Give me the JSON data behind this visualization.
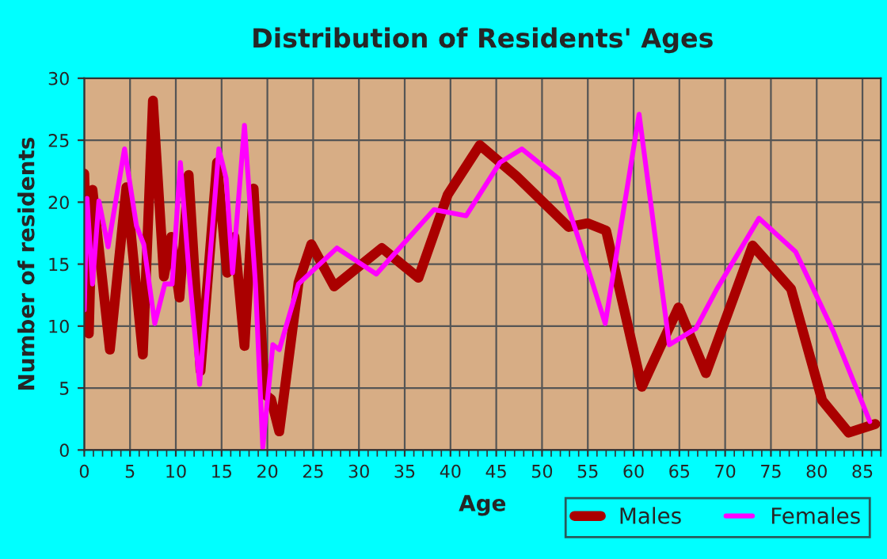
{
  "chart_data": {
    "type": "line",
    "title": "Distribution of Residents' Ages",
    "xlabel": "Age",
    "ylabel": "Number of residents",
    "xlim": [
      0,
      87
    ],
    "xticks": [
      0,
      5,
      10,
      15,
      20,
      25,
      30,
      35,
      40,
      45,
      50,
      55,
      60,
      65,
      70,
      75,
      80,
      85
    ],
    "ylim": [
      0,
      30
    ],
    "yticks": [
      0,
      5,
      10,
      15,
      20,
      25,
      30
    ],
    "grid": true,
    "legend": "bottom right",
    "line_style": "solid",
    "marker": "none",
    "series": [
      {
        "name": "Males",
        "color": "#aa0000",
        "x": [
          0,
          0.5,
          0.9,
          2.8,
          4.6,
          6.4,
          7.5,
          8.7,
          9.5,
          10.4,
          11.4,
          12.7,
          14.5,
          15.6,
          16.4,
          17.5,
          18.5,
          19.7,
          20.4,
          21.3,
          23.4,
          24.8,
          27.3,
          32.5,
          36.5,
          39.7,
          43.2,
          47.2,
          52.9,
          55.0,
          57.0,
          60.9,
          64.9,
          67.9,
          73.0,
          77.2,
          80.6,
          83.5,
          86.4
        ],
        "values": [
          22.3,
          9.4,
          21,
          8.1,
          21.2,
          7.7,
          28.2,
          14,
          17.2,
          12.3,
          22.2,
          6.4,
          23.2,
          14.3,
          17.2,
          8.4,
          21.1,
          4.5,
          4.1,
          1.5,
          13.5,
          16.6,
          13.2,
          16.3,
          13.9,
          20.6,
          24.6,
          22.1,
          18,
          18.3,
          17.7,
          5.1,
          11.5,
          6.2,
          16.5,
          13,
          4,
          1.4,
          2.1
        ]
      },
      {
        "name": "Females",
        "color": "#ff00ff",
        "x": [
          0,
          0.3,
          0.9,
          1.6,
          2.6,
          4.4,
          5.7,
          6.5,
          7.7,
          8.8,
          9.6,
          10.5,
          11.4,
          12.6,
          14.7,
          15.5,
          16.2,
          17.5,
          18.7,
          19.5,
          20.6,
          21.3,
          23.4,
          27.6,
          31.9,
          38.2,
          41.7,
          45.4,
          47.8,
          51.8,
          54.1,
          56.9,
          60.6,
          63.9,
          66.8,
          69.1,
          73.7,
          77.7,
          81.8,
          85.8
        ],
        "values": [
          11.3,
          20.3,
          13.4,
          20.1,
          16.4,
          24.3,
          18.1,
          16.6,
          10.2,
          13.4,
          13.4,
          23.2,
          14.7,
          5.3,
          24.3,
          21.9,
          14.3,
          26.2,
          13.4,
          0.2,
          8.5,
          8.1,
          13.4,
          16.3,
          14.2,
          19.4,
          18.9,
          23.2,
          24.3,
          21.9,
          16.8,
          10.2,
          27.1,
          8.5,
          9.8,
          13,
          18.7,
          16,
          9.6,
          2.3
        ]
      }
    ]
  }
}
